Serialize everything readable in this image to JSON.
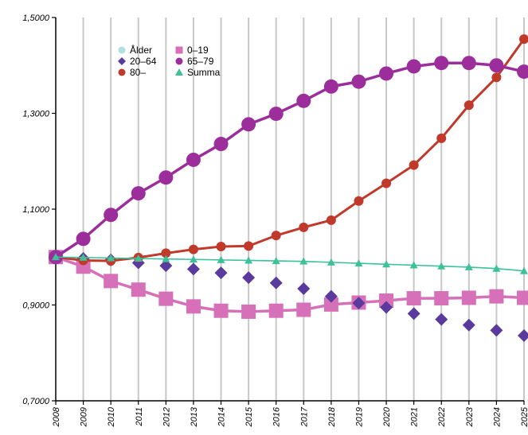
{
  "chart_data": {
    "type": "line",
    "title": "",
    "xlabel": "",
    "ylabel": "",
    "x": [
      "2008",
      "2009",
      "2010",
      "2011",
      "2012",
      "2013",
      "2014",
      "2015",
      "2016",
      "2017",
      "2018",
      "2019",
      "2020",
      "2021",
      "2022",
      "2023",
      "2024",
      "2025"
    ],
    "ylim": [
      0.7,
      1.5
    ],
    "yticks": [
      0.7,
      0.9,
      1.1,
      1.3,
      1.5
    ],
    "ytick_labels": [
      "0,7000",
      "0,9000",
      "1,1000",
      "1,3000",
      "1,5000"
    ],
    "grid": "vertical",
    "legend_position": "top-left",
    "legend_header": "Ålder",
    "series": [
      {
        "name": "0–19",
        "marker": "square",
        "color": "#d670b8",
        "line": true,
        "values": [
          1.0,
          0.98,
          0.95,
          0.932,
          0.913,
          0.897,
          0.888,
          0.886,
          0.888,
          0.89,
          0.901,
          0.905,
          0.909,
          0.914,
          0.914,
          0.915,
          0.918,
          0.915
        ]
      },
      {
        "name": "20–64",
        "marker": "diamond",
        "color": "#5b3a9e",
        "line": false,
        "values": [
          1.0,
          0.997,
          0.994,
          0.988,
          0.982,
          0.975,
          0.967,
          0.957,
          0.946,
          0.934,
          0.918,
          0.904,
          0.895,
          0.882,
          0.87,
          0.858,
          0.847,
          0.836
        ]
      },
      {
        "name": "80–",
        "marker": "circle",
        "color": "#c0392b",
        "line": true,
        "values": [
          1.0,
          0.993,
          0.992,
          0.999,
          1.008,
          1.016,
          1.022,
          1.023,
          1.045,
          1.062,
          1.077,
          1.117,
          1.154,
          1.192,
          1.248,
          1.317,
          1.375,
          1.455
        ]
      },
      {
        "name": "65–79",
        "marker": "circle-large",
        "color": "#9b2e9b",
        "line": true,
        "values": [
          1.0,
          1.038,
          1.088,
          1.133,
          1.166,
          1.203,
          1.236,
          1.277,
          1.299,
          1.326,
          1.356,
          1.366,
          1.383,
          1.398,
          1.405,
          1.405,
          1.4,
          1.387
        ]
      },
      {
        "name": "Summa",
        "marker": "triangle",
        "color": "#3cc199",
        "line": true,
        "values": [
          1.0,
          0.999,
          0.998,
          0.997,
          0.996,
          0.995,
          0.994,
          0.993,
          0.992,
          0.991,
          0.989,
          0.987,
          0.985,
          0.983,
          0.981,
          0.979,
          0.976,
          0.971
        ]
      }
    ],
    "legend": [
      {
        "label": "Ålder",
        "marker": "circle",
        "color": "#aee0e8"
      },
      {
        "label": "0–19",
        "marker": "square",
        "color": "#d670b8"
      },
      {
        "label": "20–64",
        "marker": "diamond",
        "color": "#5b3a9e"
      },
      {
        "label": "65–79",
        "marker": "circle",
        "color": "#9b2e9b"
      },
      {
        "label": "80–",
        "marker": "circle",
        "color": "#c0392b"
      },
      {
        "label": "Summa",
        "marker": "triangle",
        "color": "#3cc199"
      }
    ]
  }
}
